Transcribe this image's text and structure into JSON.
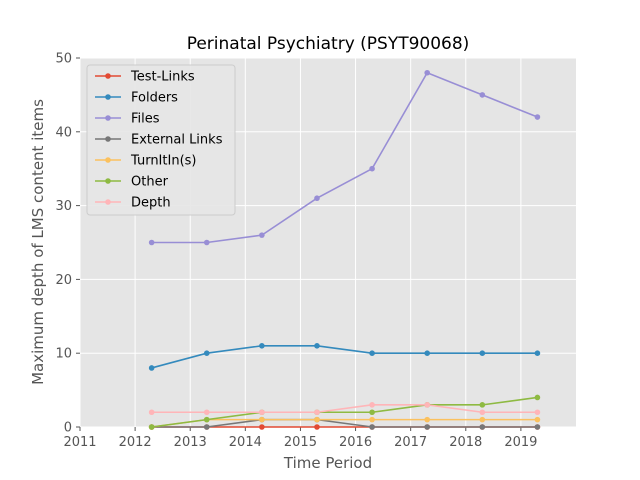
{
  "chart_data": {
    "type": "line",
    "title": "Perinatal Psychiatry (PSYT90068)",
    "xlabel": "Time Period",
    "ylabel": "Maximum depth of LMS content items",
    "xlim": [
      2011,
      2020
    ],
    "ylim": [
      0,
      50
    ],
    "x_ticks": [
      "2011",
      "2012",
      "2013",
      "2014",
      "2015",
      "2016",
      "2017",
      "2018",
      "2019"
    ],
    "y_ticks": [
      "0",
      "10",
      "20",
      "30",
      "40",
      "50"
    ],
    "grid": true,
    "legend_position": "top-left",
    "x": [
      2012.3,
      2013.3,
      2014.3,
      2015.3,
      2016.3,
      2017.3,
      2018.3,
      2019.3
    ],
    "series": [
      {
        "name": "Test-Links",
        "color": "#e24a33",
        "values": [
          0,
          0,
          0,
          0,
          0,
          0,
          0,
          0
        ]
      },
      {
        "name": "Folders",
        "color": "#348abd",
        "values": [
          8,
          10,
          11,
          11,
          10,
          10,
          10,
          10
        ]
      },
      {
        "name": "Files",
        "color": "#988ed5",
        "values": [
          25,
          25,
          26,
          31,
          35,
          48,
          45,
          42
        ]
      },
      {
        "name": "External Links",
        "color": "#777777",
        "values": [
          0,
          0,
          1,
          1,
          0,
          0,
          0,
          0
        ]
      },
      {
        "name": "TurnItIn(s)",
        "color": "#fbc15e",
        "values": [
          0,
          1,
          1,
          1,
          1,
          1,
          1,
          1
        ]
      },
      {
        "name": "Other",
        "color": "#8eba42",
        "values": [
          0,
          1,
          2,
          2,
          2,
          3,
          3,
          4
        ]
      },
      {
        "name": "Depth",
        "color": "#ffb5b8",
        "values": [
          2,
          2,
          2,
          2,
          3,
          3,
          2,
          2
        ]
      }
    ]
  }
}
